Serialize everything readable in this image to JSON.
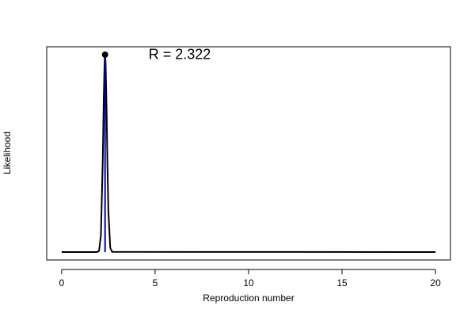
{
  "chart_data": {
    "type": "line",
    "xlabel": "Reproduction number",
    "ylabel": "Likelihood",
    "x": [
      0,
      1.9,
      2.0,
      2.1,
      2.2,
      2.25,
      2.3,
      2.322,
      2.35,
      2.4,
      2.45,
      2.5,
      2.6,
      2.7,
      20
    ],
    "series": [
      {
        "name": "Likelihood",
        "color": "#000000",
        "values": [
          0,
          0,
          0.006,
          0.085,
          0.475,
          0.772,
          0.976,
          1,
          0.961,
          0.738,
          0.441,
          0.205,
          0.021,
          0.001,
          0
        ]
      }
    ],
    "estimate": 2.322,
    "estimate_color": "#0000cd",
    "annotation": "R = 2.322",
    "xlim": [
      -0.8,
      20.8
    ],
    "ylim": [
      -0.04,
      1.04
    ],
    "xticks": [
      0,
      5,
      10,
      15,
      20
    ]
  }
}
